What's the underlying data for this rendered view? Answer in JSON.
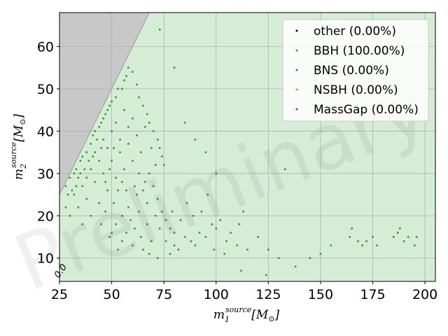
{
  "chart_data": {
    "type": "scatter",
    "title": "",
    "xlabel": "m_1^{source}[M_⊙]",
    "ylabel": "m_2^{source}[M_⊙]",
    "xlim": [
      25,
      205
    ],
    "ylim": [
      4.5,
      68
    ],
    "xticks": [
      "25",
      "50",
      "75",
      "100",
      "125",
      "150",
      "175",
      "200"
    ],
    "yticks": [
      "10",
      "20",
      "30",
      "40",
      "50",
      "60"
    ],
    "grid": true,
    "legend_position": "top-right",
    "legend": [
      {
        "label": "other (0.00%)",
        "color": "#000000"
      },
      {
        "label": "BBH (100.00%)",
        "color": "#2ca02c"
      },
      {
        "label": "BNS (0.00%)",
        "color": "#1f77b4"
      },
      {
        "label": "NSBH (0.00%)",
        "color": "#ff7f0e"
      },
      {
        "label": "MassGap (0.00%)",
        "color": "#d62728"
      }
    ],
    "excluded_region": "m2 > m1 (grey)",
    "background_fill": "#d5ecd5",
    "contour_label": "0.0",
    "watermark": "Preliminary",
    "series": [
      {
        "name": "BBH (100.00%)",
        "color": "#2ca02c",
        "points": [
          [
            28,
            27
          ],
          [
            30,
            29
          ],
          [
            32,
            30
          ],
          [
            33,
            31
          ],
          [
            35,
            33
          ],
          [
            36,
            34
          ],
          [
            38,
            35
          ],
          [
            40,
            37
          ],
          [
            41,
            39
          ],
          [
            42,
            40
          ],
          [
            44,
            41
          ],
          [
            45,
            42
          ],
          [
            46,
            43
          ],
          [
            47,
            44
          ],
          [
            48,
            45
          ],
          [
            49,
            46
          ],
          [
            50,
            47
          ],
          [
            52,
            48
          ],
          [
            53,
            50
          ],
          [
            55,
            50
          ],
          [
            56,
            52
          ],
          [
            57,
            53
          ],
          [
            58,
            55
          ],
          [
            60,
            54
          ],
          [
            62,
            51
          ],
          [
            63,
            48
          ],
          [
            65,
            46
          ],
          [
            67,
            44
          ],
          [
            68,
            42
          ],
          [
            70,
            40
          ],
          [
            72,
            38
          ],
          [
            73,
            36
          ],
          [
            74,
            34
          ],
          [
            75,
            32
          ],
          [
            66,
            28
          ],
          [
            62,
            25
          ],
          [
            58,
            22
          ],
          [
            55,
            20
          ],
          [
            52,
            18
          ],
          [
            50,
            16
          ],
          [
            55,
            14
          ],
          [
            60,
            13
          ],
          [
            65,
            12
          ],
          [
            68,
            11
          ],
          [
            72,
            10
          ],
          [
            78,
            11
          ],
          [
            80,
            13
          ],
          [
            82,
            12
          ],
          [
            85,
            15
          ],
          [
            88,
            14
          ],
          [
            90,
            13
          ],
          [
            92,
            16
          ],
          [
            95,
            15
          ],
          [
            98,
            18
          ],
          [
            100,
            17
          ],
          [
            102,
            19
          ],
          [
            105,
            14
          ],
          [
            110,
            13
          ],
          [
            113,
            21
          ],
          [
            115,
            12
          ],
          [
            120,
            15
          ],
          [
            125,
            12
          ],
          [
            130,
            10
          ],
          [
            133,
            31
          ],
          [
            138,
            8
          ],
          [
            145,
            10
          ],
          [
            150,
            11
          ],
          [
            155,
            13
          ],
          [
            164,
            15
          ],
          [
            165,
            17
          ],
          [
            168,
            14
          ],
          [
            170,
            13
          ],
          [
            172,
            14
          ],
          [
            175,
            15
          ],
          [
            177,
            13
          ],
          [
            185,
            15
          ],
          [
            187,
            16
          ],
          [
            188,
            17
          ],
          [
            190,
            14
          ],
          [
            192,
            15
          ],
          [
            195,
            13
          ],
          [
            196,
            15
          ],
          [
            73,
            64
          ],
          [
            80,
            55
          ],
          [
            85,
            42
          ],
          [
            90,
            38
          ],
          [
            95,
            35
          ],
          [
            100,
            30
          ],
          [
            112,
            7
          ],
          [
            124,
            6
          ],
          [
            28,
            22
          ],
          [
            30,
            20
          ],
          [
            32,
            25
          ],
          [
            34,
            22
          ],
          [
            36,
            18
          ],
          [
            38,
            24
          ],
          [
            40,
            20
          ],
          [
            42,
            28
          ],
          [
            44,
            23
          ],
          [
            46,
            30
          ],
          [
            48,
            26
          ],
          [
            50,
            33
          ],
          [
            52,
            29
          ],
          [
            54,
            35
          ],
          [
            56,
            31
          ],
          [
            58,
            37
          ],
          [
            60,
            33
          ],
          [
            62,
            39
          ],
          [
            64,
            35
          ],
          [
            66,
            41
          ],
          [
            68,
            30
          ],
          [
            70,
            27
          ],
          [
            72,
            24
          ],
          [
            74,
            21
          ],
          [
            76,
            19
          ],
          [
            78,
            17
          ],
          [
            80,
            16
          ],
          [
            60,
            43
          ],
          [
            58,
            41
          ],
          [
            56,
            45
          ],
          [
            54,
            38
          ],
          [
            52,
            42
          ],
          [
            50,
            40
          ],
          [
            48,
            36
          ],
          [
            46,
            38
          ],
          [
            44,
            33
          ],
          [
            42,
            35
          ],
          [
            40,
            31
          ],
          [
            38,
            29
          ],
          [
            36,
            27
          ],
          [
            34,
            29
          ],
          [
            45,
            18
          ],
          [
            47,
            21
          ],
          [
            49,
            15
          ],
          [
            51,
            23
          ],
          [
            53,
            12
          ],
          [
            57,
            16
          ],
          [
            59,
            19
          ],
          [
            61,
            17
          ],
          [
            63,
            21
          ],
          [
            64,
            15
          ],
          [
            67,
            18
          ],
          [
            69,
            14
          ],
          [
            71,
            20
          ],
          [
            73,
            17
          ],
          [
            76,
            14
          ],
          [
            79,
            21
          ],
          [
            83,
            19
          ],
          [
            86,
            23
          ],
          [
            89,
            20
          ],
          [
            93,
            21
          ],
          [
            96,
            25
          ],
          [
            99,
            12
          ],
          [
            104,
            11
          ],
          [
            107,
            16
          ],
          [
            111,
            18
          ],
          [
            63,
            30
          ],
          [
            65,
            26
          ],
          [
            67,
            23
          ],
          [
            69,
            36
          ],
          [
            71,
            32
          ],
          [
            61,
            27
          ],
          [
            57,
            26
          ],
          [
            55,
            28
          ],
          [
            53,
            26
          ],
          [
            51,
            36
          ],
          [
            49,
            31
          ],
          [
            47,
            28
          ],
          [
            45,
            36
          ],
          [
            43,
            38
          ],
          [
            41,
            34
          ],
          [
            39,
            33
          ],
          [
            37,
            31
          ],
          [
            35,
            30
          ],
          [
            33,
            27
          ],
          [
            31,
            26
          ],
          [
            29,
            25
          ]
        ]
      }
    ]
  }
}
